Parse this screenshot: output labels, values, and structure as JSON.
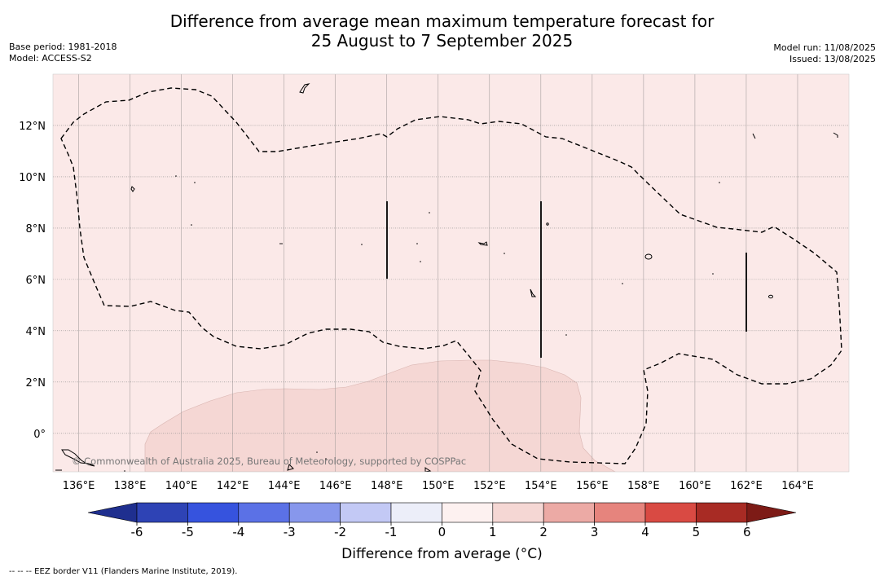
{
  "title": {
    "line1": "Difference from average mean maximum temperature forecast for",
    "line2": "25 August to 7 September 2025"
  },
  "meta": {
    "base_period": "Base period: 1981-2018",
    "model": "Model: ACCESS-S2",
    "model_run": "Model run: 11/08/2025",
    "issued": "Issued: 13/08/2025"
  },
  "map": {
    "lon_range": [
      135.0,
      166.0
    ],
    "lat_range": [
      -1.5,
      14.0
    ],
    "lon_ticks": [
      "136°E",
      "138°E",
      "140°E",
      "142°E",
      "144°E",
      "146°E",
      "148°E",
      "150°E",
      "152°E",
      "154°E",
      "156°E",
      "158°E",
      "160°E",
      "162°E",
      "164°E"
    ],
    "lat_ticks": [
      "0°",
      "2°N",
      "4°N",
      "6°N",
      "8°N",
      "10°N",
      "12°N"
    ],
    "background_color": "#fbe9e8",
    "anomaly_region_color": "#f5d7d4",
    "grid": true,
    "copyright": "© Commonwealth of Australia 2025, Bureau of Meteorology, supported by COSPPac"
  },
  "colorbar": {
    "label": "Difference from average (°C)",
    "tick_labels": [
      "-6",
      "-5",
      "-4",
      "-3",
      "-2",
      "-1",
      "0",
      "1",
      "2",
      "3",
      "4",
      "5",
      "6"
    ],
    "colors": [
      "#1f2f8f",
      "#2e43b5",
      "#3653de",
      "#5b71e6",
      "#8797ec",
      "#c3c9f5",
      "#eceef9",
      "#fdf1f0",
      "#f5d7d4",
      "#ecaaa5",
      "#e6847d",
      "#d94a43",
      "#a82b24",
      "#7d1b16"
    ]
  },
  "footnote": "--  --  -- EEZ border V11 (Flanders Marine Institute, 2019)."
}
